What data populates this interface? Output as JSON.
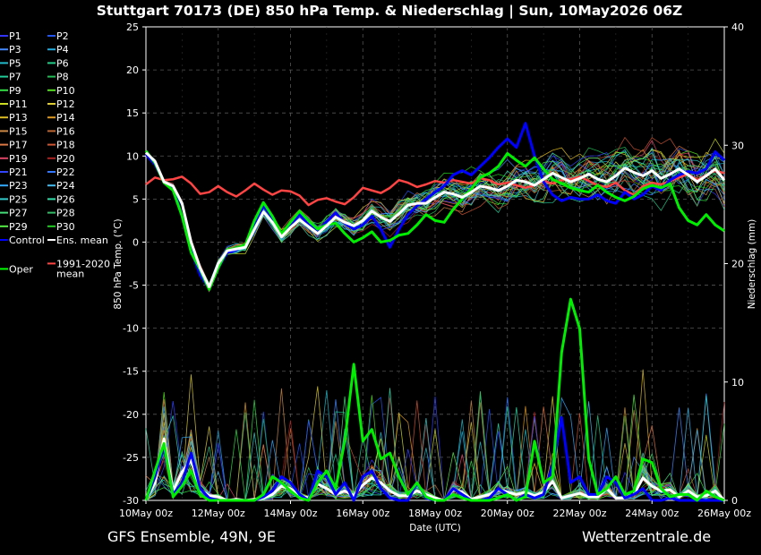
{
  "title": "Stuttgart 70173 (DE)  850 hPa Temp. & Niederschlag | Sun, 10May2026 06Z",
  "footer_left": "GFS Ensemble, 49N, 9E",
  "footer_right": "Wetterzentrale.de",
  "chart_data": {
    "type": "line",
    "xlabel": "Date (UTC)",
    "ylabel_left": "850 hPa Temp. (°C)",
    "ylabel_right": "Niederschlag (mm)",
    "xlim": [
      0,
      64
    ],
    "ylim_left": [
      -30,
      25
    ],
    "ylim_right": [
      0,
      40
    ],
    "yticks_left": [
      25,
      20,
      15,
      10,
      5,
      0,
      -5,
      -10,
      -15,
      -20,
      -25,
      -30
    ],
    "yticks_right": [
      40,
      30,
      20,
      10,
      0
    ],
    "xticks": [
      {
        "x": 0,
        "label": "10May 00z"
      },
      {
        "x": 8,
        "label": "12May 00z"
      },
      {
        "x": 16,
        "label": "14May 00z"
      },
      {
        "x": 24,
        "label": "16May 00z"
      },
      {
        "x": 32,
        "label": "18May 00z"
      },
      {
        "x": 40,
        "label": "20May 00z"
      },
      {
        "x": 48,
        "label": "22May 00z"
      },
      {
        "x": 56,
        "label": "24May 00z"
      },
      {
        "x": 64,
        "label": "26May 00z"
      }
    ],
    "grid": true,
    "legend_placement": "left-outside",
    "colors": {
      "control": "#0000ff",
      "ens_mean": "#ffffff",
      "oper": "#00dd00",
      "clim": "#ff4444"
    },
    "legend": [
      {
        "name": "P1",
        "color": "#3333ff"
      },
      {
        "name": "P2",
        "color": "#2255ee"
      },
      {
        "name": "P3",
        "color": "#4488ff"
      },
      {
        "name": "P4",
        "color": "#22aadd"
      },
      {
        "name": "P5",
        "color": "#22bbcc"
      },
      {
        "name": "P6",
        "color": "#22cc88"
      },
      {
        "name": "P7",
        "color": "#22cc99"
      },
      {
        "name": "P8",
        "color": "#22bb55"
      },
      {
        "name": "P9",
        "color": "#33dd44"
      },
      {
        "name": "P10",
        "color": "#55dd22"
      },
      {
        "name": "P11",
        "color": "#ccdd22"
      },
      {
        "name": "P12",
        "color": "#ddcc33"
      },
      {
        "name": "P13",
        "color": "#ddbb22"
      },
      {
        "name": "P14",
        "color": "#dd9922"
      },
      {
        "name": "P15",
        "color": "#cc8844"
      },
      {
        "name": "P16",
        "color": "#bb6633"
      },
      {
        "name": "P17",
        "color": "#dd7744"
      },
      {
        "name": "P18",
        "color": "#cc5533"
      },
      {
        "name": "P19",
        "color": "#dd4466"
      },
      {
        "name": "P20",
        "color": "#aa2222"
      },
      {
        "name": "P21",
        "color": "#3344ff"
      },
      {
        "name": "P22",
        "color": "#3377ff"
      },
      {
        "name": "P23",
        "color": "#33aaff"
      },
      {
        "name": "P24",
        "color": "#44bbee"
      },
      {
        "name": "P25",
        "color": "#33cccc"
      },
      {
        "name": "P26",
        "color": "#33ddaa"
      },
      {
        "name": "P27",
        "color": "#44dd77"
      },
      {
        "name": "P28",
        "color": "#33bb66"
      },
      {
        "name": "P29",
        "color": "#55ee44"
      },
      {
        "name": "P30",
        "color": "#22cc22"
      },
      {
        "name": "Control",
        "color": "#0000ff"
      },
      {
        "name": "Ens. mean",
        "color": "#ffffff"
      },
      {
        "name": "Oper",
        "color": "#00ff00"
      },
      {
        "name": "1991-2020\nmean",
        "color": "#ff4444"
      }
    ],
    "series": [
      {
        "name": "1991-2020 mean",
        "axis": "left",
        "color": "#ff4444",
        "width": 2.5,
        "values": [
          6.7,
          7.5,
          7.2,
          7.3,
          7.6,
          6.8,
          5.6,
          5.8,
          6.5,
          5.8,
          5.3,
          6.0,
          6.8,
          6.1,
          5.5,
          6.0,
          5.9,
          5.4,
          4.3,
          4.9,
          5.1,
          4.7,
          4.4,
          5.2,
          6.3,
          6.0,
          5.7,
          6.3,
          7.2,
          6.9,
          6.4,
          6.7,
          7.1,
          6.9,
          7.2,
          7.0,
          6.8,
          7.4,
          7.2,
          6.7,
          6.9,
          6.6,
          6.3,
          6.6,
          7.1,
          6.8,
          7.2,
          7.3,
          7.6,
          7.1,
          6.6,
          6.4,
          6.9,
          6.0,
          5.5,
          6.5,
          6.9,
          6.7,
          7.1,
          7.5,
          7.9,
          7.2,
          7.8,
          8.3,
          8.0
        ]
      },
      {
        "name": "Ens. mean",
        "axis": "left",
        "color": "#ffffff",
        "width": 3,
        "values": [
          10.4,
          9.4,
          7.0,
          6.5,
          4.5,
          0.0,
          -3.0,
          -5.2,
          -2.5,
          -1.0,
          -0.8,
          -0.6,
          1.5,
          3.5,
          2.3,
          0.6,
          1.7,
          2.6,
          1.8,
          1.0,
          1.9,
          2.9,
          2.3,
          1.9,
          2.5,
          3.6,
          2.9,
          2.4,
          3.3,
          4.3,
          4.5,
          4.5,
          5.2,
          5.8,
          5.6,
          5.2,
          5.8,
          6.5,
          6.3,
          6.0,
          6.5,
          7.2,
          7.0,
          6.6,
          7.3,
          8.0,
          7.5,
          7.0,
          7.4,
          7.9,
          7.3,
          7.0,
          7.7,
          8.6,
          8.1,
          7.7,
          8.3,
          7.4,
          7.9,
          8.5,
          7.8,
          7.0,
          7.7,
          8.5,
          7.2
        ]
      },
      {
        "name": "Control",
        "axis": "left",
        "color": "#0000ff",
        "width": 3,
        "values": [
          10.2,
          9.0,
          7.0,
          6.4,
          3.0,
          -1.0,
          -3.8,
          -5.4,
          -3.0,
          -1.2,
          -0.9,
          -0.4,
          1.8,
          4.2,
          2.8,
          0.8,
          2.0,
          3.2,
          2.0,
          1.2,
          2.4,
          3.4,
          2.2,
          1.5,
          2.0,
          3.0,
          1.5,
          -0.6,
          1.5,
          3.2,
          4.2,
          5.0,
          5.8,
          6.5,
          7.8,
          8.3,
          7.8,
          8.8,
          9.8,
          11.0,
          12.0,
          11.0,
          13.8,
          10.0,
          7.0,
          5.5,
          4.8,
          5.2,
          5.0,
          5.0,
          5.5,
          4.8,
          4.5,
          5.8,
          5.0,
          5.5,
          6.5,
          6.0,
          7.2,
          7.8,
          8.2,
          8.0,
          8.5,
          10.5,
          9.5
        ]
      },
      {
        "name": "Oper",
        "axis": "left",
        "color": "#00ee00",
        "width": 3,
        "values": [
          10.6,
          9.2,
          6.9,
          6.0,
          3.0,
          -1.2,
          -3.2,
          -5.5,
          -3.0,
          -0.9,
          -0.8,
          -0.3,
          2.5,
          4.6,
          3.0,
          1.0,
          2.3,
          3.6,
          2.5,
          1.5,
          2.0,
          2.2,
          1.0,
          0.0,
          0.5,
          1.2,
          0.0,
          0.2,
          0.8,
          1.0,
          2.0,
          3.2,
          2.5,
          2.3,
          3.8,
          5.0,
          6.2,
          7.5,
          8.0,
          8.8,
          10.3,
          9.5,
          8.8,
          9.8,
          8.5,
          7.3,
          6.8,
          6.3,
          6.0,
          5.8,
          6.6,
          5.8,
          5.2,
          4.8,
          5.3,
          6.2,
          6.6,
          6.3,
          6.8,
          4.0,
          2.5,
          2.0,
          3.2,
          2.0,
          1.3
        ]
      },
      {
        "name": "Ens. mean precip",
        "axis": "right",
        "color": "#ffffff",
        "width": 3,
        "values": [
          0.0,
          1.5,
          5.2,
          0.8,
          2.4,
          3.4,
          0.9,
          0.4,
          0.3,
          0.0,
          0.1,
          0.0,
          0.1,
          0.2,
          0.5,
          1.2,
          1.0,
          0.4,
          0.2,
          1.4,
          1.0,
          0.5,
          0.8,
          0.4,
          1.3,
          1.9,
          1.5,
          0.8,
          0.4,
          0.4,
          0.8,
          0.5,
          0.2,
          0.0,
          0.9,
          0.7,
          0.1,
          0.3,
          0.5,
          0.9,
          0.7,
          0.5,
          0.7,
          0.4,
          0.7,
          1.6,
          0.2,
          0.4,
          0.6,
          0.3,
          0.3,
          1.0,
          0.2,
          0.2,
          0.5,
          1.9,
          1.2,
          0.8,
          0.9,
          0.3,
          0.8,
          0.3,
          0.4,
          0.8,
          0.0
        ]
      },
      {
        "name": "Control precip",
        "axis": "right",
        "color": "#0000ff",
        "width": 3,
        "values": [
          0.0,
          2.0,
          4.5,
          0.5,
          1.5,
          4.0,
          1.0,
          0.2,
          0.0,
          0.0,
          0.0,
          0.0,
          0.0,
          0.3,
          0.8,
          2.0,
          1.5,
          0.5,
          0.0,
          2.5,
          2.0,
          0.5,
          1.5,
          0.0,
          2.0,
          2.5,
          1.0,
          0.2,
          0.0,
          0.0,
          1.5,
          0.2,
          0.0,
          0.0,
          1.0,
          0.5,
          0.0,
          0.0,
          0.2,
          1.0,
          0.5,
          0.0,
          0.5,
          0.2,
          0.5,
          3.0,
          7.0,
          1.5,
          2.0,
          0.5,
          0.5,
          2.0,
          1.5,
          0.2,
          0.5,
          1.0,
          0.0,
          0.0,
          0.2,
          0.0,
          0.0,
          0.0,
          0.0,
          0.0,
          0.0
        ]
      },
      {
        "name": "Oper precip",
        "axis": "right",
        "color": "#00ee00",
        "width": 3,
        "values": [
          0.0,
          2.5,
          4.8,
          0.3,
          1.2,
          2.5,
          0.5,
          0.0,
          0.0,
          0.0,
          0.0,
          0.0,
          0.0,
          0.5,
          2.0,
          1.5,
          0.8,
          0.2,
          0.0,
          1.5,
          2.5,
          1.0,
          5.0,
          11.5,
          5.0,
          6.0,
          3.5,
          4.0,
          2.0,
          0.5,
          1.5,
          0.3,
          0.0,
          0.0,
          0.5,
          0.2,
          0.0,
          0.0,
          0.0,
          0.2,
          0.5,
          0.0,
          0.3,
          5.0,
          1.5,
          2.0,
          12.5,
          17.0,
          14.5,
          3.5,
          0.5,
          1.0,
          2.0,
          0.5,
          0.8,
          3.5,
          3.2,
          1.0,
          0.3,
          0.5,
          0.5,
          0.0,
          0.8,
          0.3,
          0.0
        ]
      }
    ]
  }
}
